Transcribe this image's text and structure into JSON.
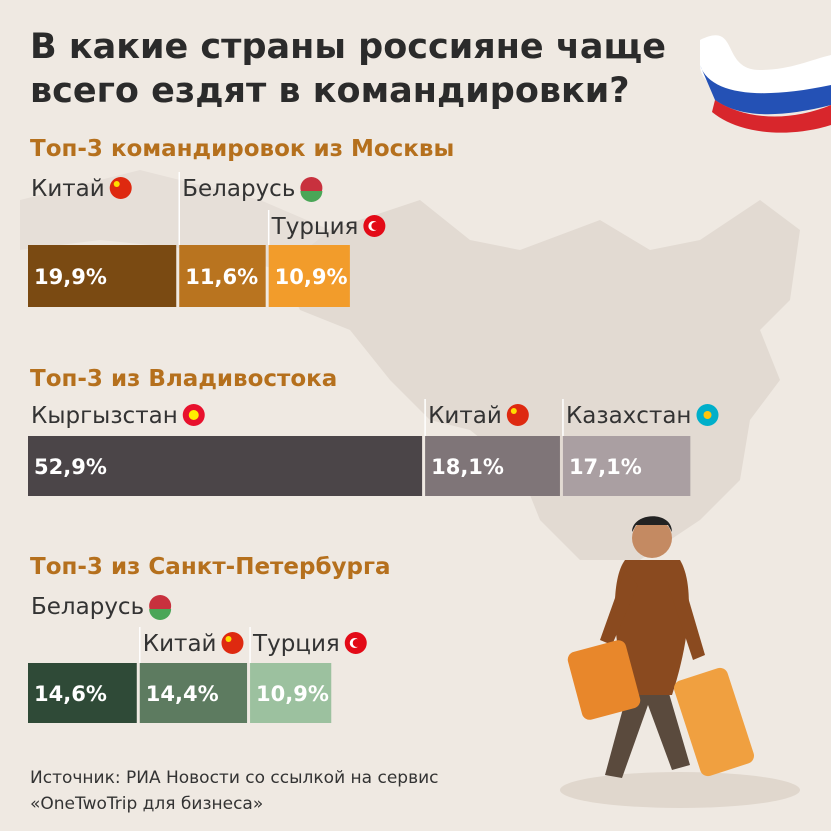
{
  "title": [
    "В какие страны россияне чаще",
    "всего ездят в командировки?"
  ],
  "chart_data": [
    {
      "type": "bar",
      "title": "Топ-3 командировок из Москвы",
      "categories": [
        "Китай",
        "Беларусь",
        "Турция"
      ],
      "values": [
        19.9,
        11.6,
        10.9
      ],
      "value_labels": [
        "19,9%",
        "11,6%",
        "10,9%"
      ],
      "colors": [
        "#7a4a12",
        "#b9741f",
        "#f29c2b"
      ]
    },
    {
      "type": "bar",
      "title": "Топ-3 из Владивостока",
      "categories": [
        "Кыргызстан",
        "Китай",
        "Казахстан"
      ],
      "values": [
        52.9,
        18.1,
        17.1
      ],
      "value_labels": [
        "52,9%",
        "18,1%",
        "17,1%"
      ],
      "colors": [
        "#4b4548",
        "#7f7578",
        "#aa9fa2"
      ]
    },
    {
      "type": "bar",
      "title": "Топ-3 из Санкт-Петербурга",
      "categories": [
        "Беларусь",
        "Китай",
        "Турция"
      ],
      "values": [
        14.6,
        14.4,
        10.9
      ],
      "value_labels": [
        "14,6%",
        "14,4%",
        "10,9%"
      ],
      "colors": [
        "#2f4a37",
        "#5d7b60",
        "#9cc19f"
      ]
    }
  ],
  "source": [
    "Источник: РИА Новости со ссылкой на сервис",
    "«OneTwoTrip для бизнеса»"
  ]
}
